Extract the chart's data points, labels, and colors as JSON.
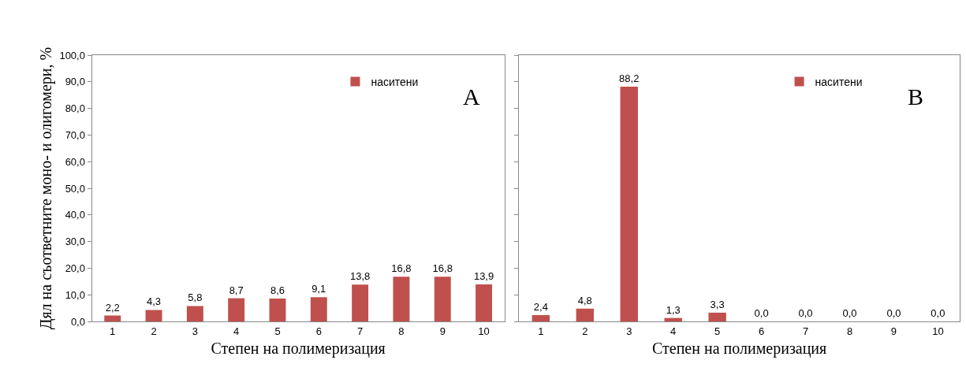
{
  "chart_data": [
    {
      "type": "bar",
      "ylabel": "Дял на съответните моно- и олигомери, %",
      "xlabel": "Степен на полимеризация",
      "annotations": [
        "A"
      ],
      "categories": [
        "1",
        "2",
        "3",
        "4",
        "5",
        "6",
        "7",
        "8",
        "9",
        "10"
      ],
      "series": [
        {
          "name": "наситени",
          "color": "#c0504d",
          "values": [
            2.2,
            4.3,
            5.8,
            8.7,
            8.6,
            9.1,
            13.8,
            16.8,
            16.8,
            13.9
          ],
          "value_labels": [
            "2,2",
            "4,3",
            "5,8",
            "8,7",
            "8,6",
            "9,1",
            "13,8",
            "16,8",
            "16,8",
            "13,9"
          ]
        }
      ],
      "ylim": [
        0,
        100
      ],
      "yticks": [
        {
          "value": 0,
          "label": "0,0"
        },
        {
          "value": 10,
          "label": "10,0"
        },
        {
          "value": 20,
          "label": "20,0"
        },
        {
          "value": 30,
          "label": "30,0"
        },
        {
          "value": 40,
          "label": "40,0"
        },
        {
          "value": 50,
          "label": "50,0"
        },
        {
          "value": 60,
          "label": "60,0"
        },
        {
          "value": 70,
          "label": "70,0"
        },
        {
          "value": 80,
          "label": "80,0"
        },
        {
          "value": 90,
          "label": "90,0"
        },
        {
          "value": 100,
          "label": "100,0"
        }
      ],
      "legend": "top right"
    },
    {
      "type": "bar",
      "xlabel": "Степен на полимеризация",
      "annotations": [
        "B"
      ],
      "categories": [
        "1",
        "2",
        "3",
        "4",
        "5",
        "6",
        "7",
        "8",
        "9",
        "10"
      ],
      "series": [
        {
          "name": "наситени",
          "color": "#c0504d",
          "values": [
            2.4,
            4.8,
            88.2,
            1.3,
            3.3,
            0.0,
            0.0,
            0.0,
            0.0,
            0.0
          ],
          "value_labels": [
            "2,4",
            "4,8",
            "88,2",
            "1,3",
            "3,3",
            "0,0",
            "0,0",
            "0,0",
            "0,0",
            "0,0"
          ]
        }
      ],
      "ylim": [
        0,
        100
      ],
      "yticks": [
        {
          "value": 0,
          "label": null
        },
        {
          "value": 10,
          "label": null
        },
        {
          "value": 20,
          "label": null
        },
        {
          "value": 30,
          "label": null
        },
        {
          "value": 40,
          "label": null
        },
        {
          "value": 50,
          "label": null
        },
        {
          "value": 60,
          "label": null
        },
        {
          "value": 70,
          "label": null
        },
        {
          "value": 80,
          "label": null
        },
        {
          "value": 90,
          "label": null
        },
        {
          "value": 100,
          "label": null
        }
      ],
      "tick_labels": "x",
      "legend": "top right"
    }
  ]
}
